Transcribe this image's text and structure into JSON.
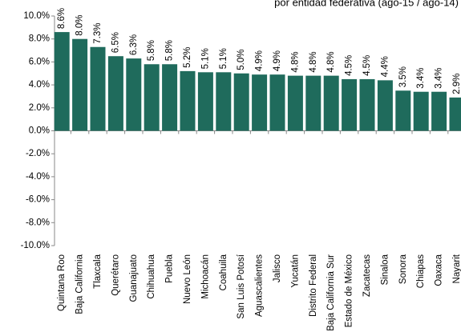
{
  "chart_data": {
    "type": "bar",
    "title": "por entidad federativa (ago-15 / ago-14)",
    "categories": [
      "Quintana Roo",
      "Baja California",
      "Tlaxcala",
      "Querétaro",
      "Guanajuato",
      "Chihuahua",
      "Puebla",
      "Nuevo León",
      "Michoacán",
      "Coahuila",
      "San Luis Potosí",
      "Aguascalientes",
      "Jalisco",
      "Yucatán",
      "Distrito Federal",
      "Baja California Sur",
      "Estado de México",
      "Zacatecas",
      "Sinaloa",
      "Sonora",
      "Chiapas",
      "Oaxaca",
      "Nayarit"
    ],
    "values": [
      8.6,
      8.0,
      7.3,
      6.5,
      6.3,
      5.8,
      5.8,
      5.2,
      5.1,
      5.1,
      5.0,
      4.9,
      4.9,
      4.8,
      4.8,
      4.8,
      4.5,
      4.5,
      4.4,
      3.5,
      3.4,
      3.4,
      2.9
    ],
    "value_labels": [
      "8.6%",
      "8.0%",
      "7.3%",
      "6.5%",
      "6.3%",
      "5.8%",
      "5.8%",
      "5.2%",
      "5.1%",
      "5.1%",
      "5.0%",
      "4.9%",
      "4.9%",
      "4.8%",
      "4.8%",
      "4.8%",
      "4.5%",
      "4.5%",
      "4.4%",
      "3.5%",
      "3.4%",
      "3.4%",
      "2.9%"
    ],
    "color": "#1f6b5c",
    "ylim": [
      -10,
      10
    ],
    "yticks": [
      {
        "value": 10,
        "label": "10.0%"
      },
      {
        "value": 8,
        "label": "8.0%"
      },
      {
        "value": 6,
        "label": "6.0%"
      },
      {
        "value": 4,
        "label": "4.0%"
      },
      {
        "value": 2,
        "label": "2.0%"
      },
      {
        "value": 0,
        "label": "0.0%"
      },
      {
        "value": -2,
        "label": "-2.0%"
      },
      {
        "value": -4,
        "label": "-4.0%"
      },
      {
        "value": -6,
        "label": "-6.0%"
      },
      {
        "value": -8,
        "label": "-8.0%"
      },
      {
        "value": -10,
        "label": "-10.0%"
      }
    ],
    "grid": false
  }
}
